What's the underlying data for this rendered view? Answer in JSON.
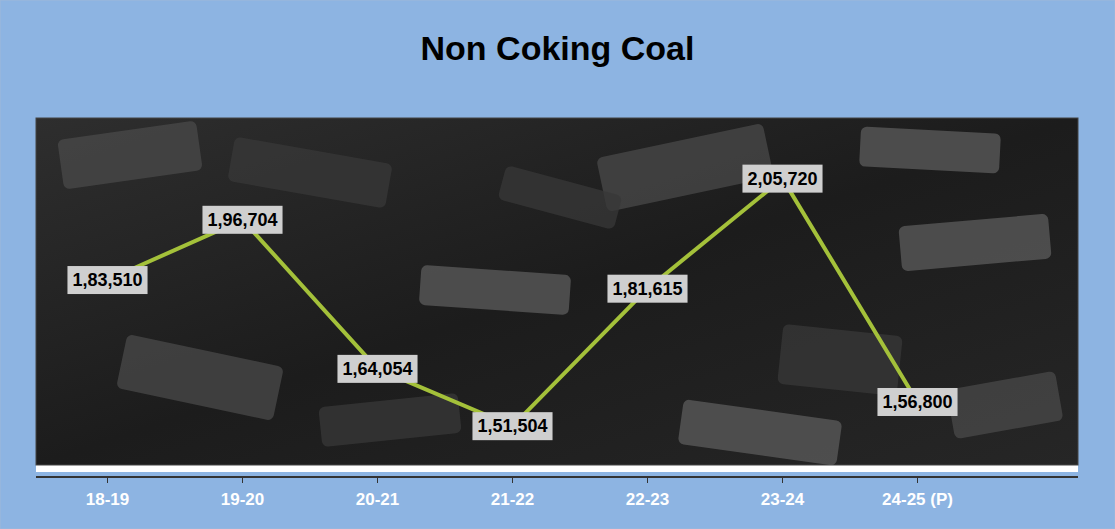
{
  "chart_data": {
    "type": "line",
    "title": "Non Coking Coal",
    "categories": [
      "18-19",
      "19-20",
      "20-21",
      "21-22",
      "22-23",
      "23-24",
      "24-25 (P)"
    ],
    "values": [
      183510,
      196704,
      164054,
      151504,
      181615,
      205720,
      156800
    ],
    "value_labels": [
      "1,83,510",
      "1,96,704",
      "1,64,054",
      "1,51,504",
      "1,81,615",
      "2,05,720",
      "1,56,800"
    ],
    "color": "#a4c13a",
    "ylim": [
      143000,
      219000
    ],
    "data_labels": true,
    "tick_labels": "x"
  }
}
